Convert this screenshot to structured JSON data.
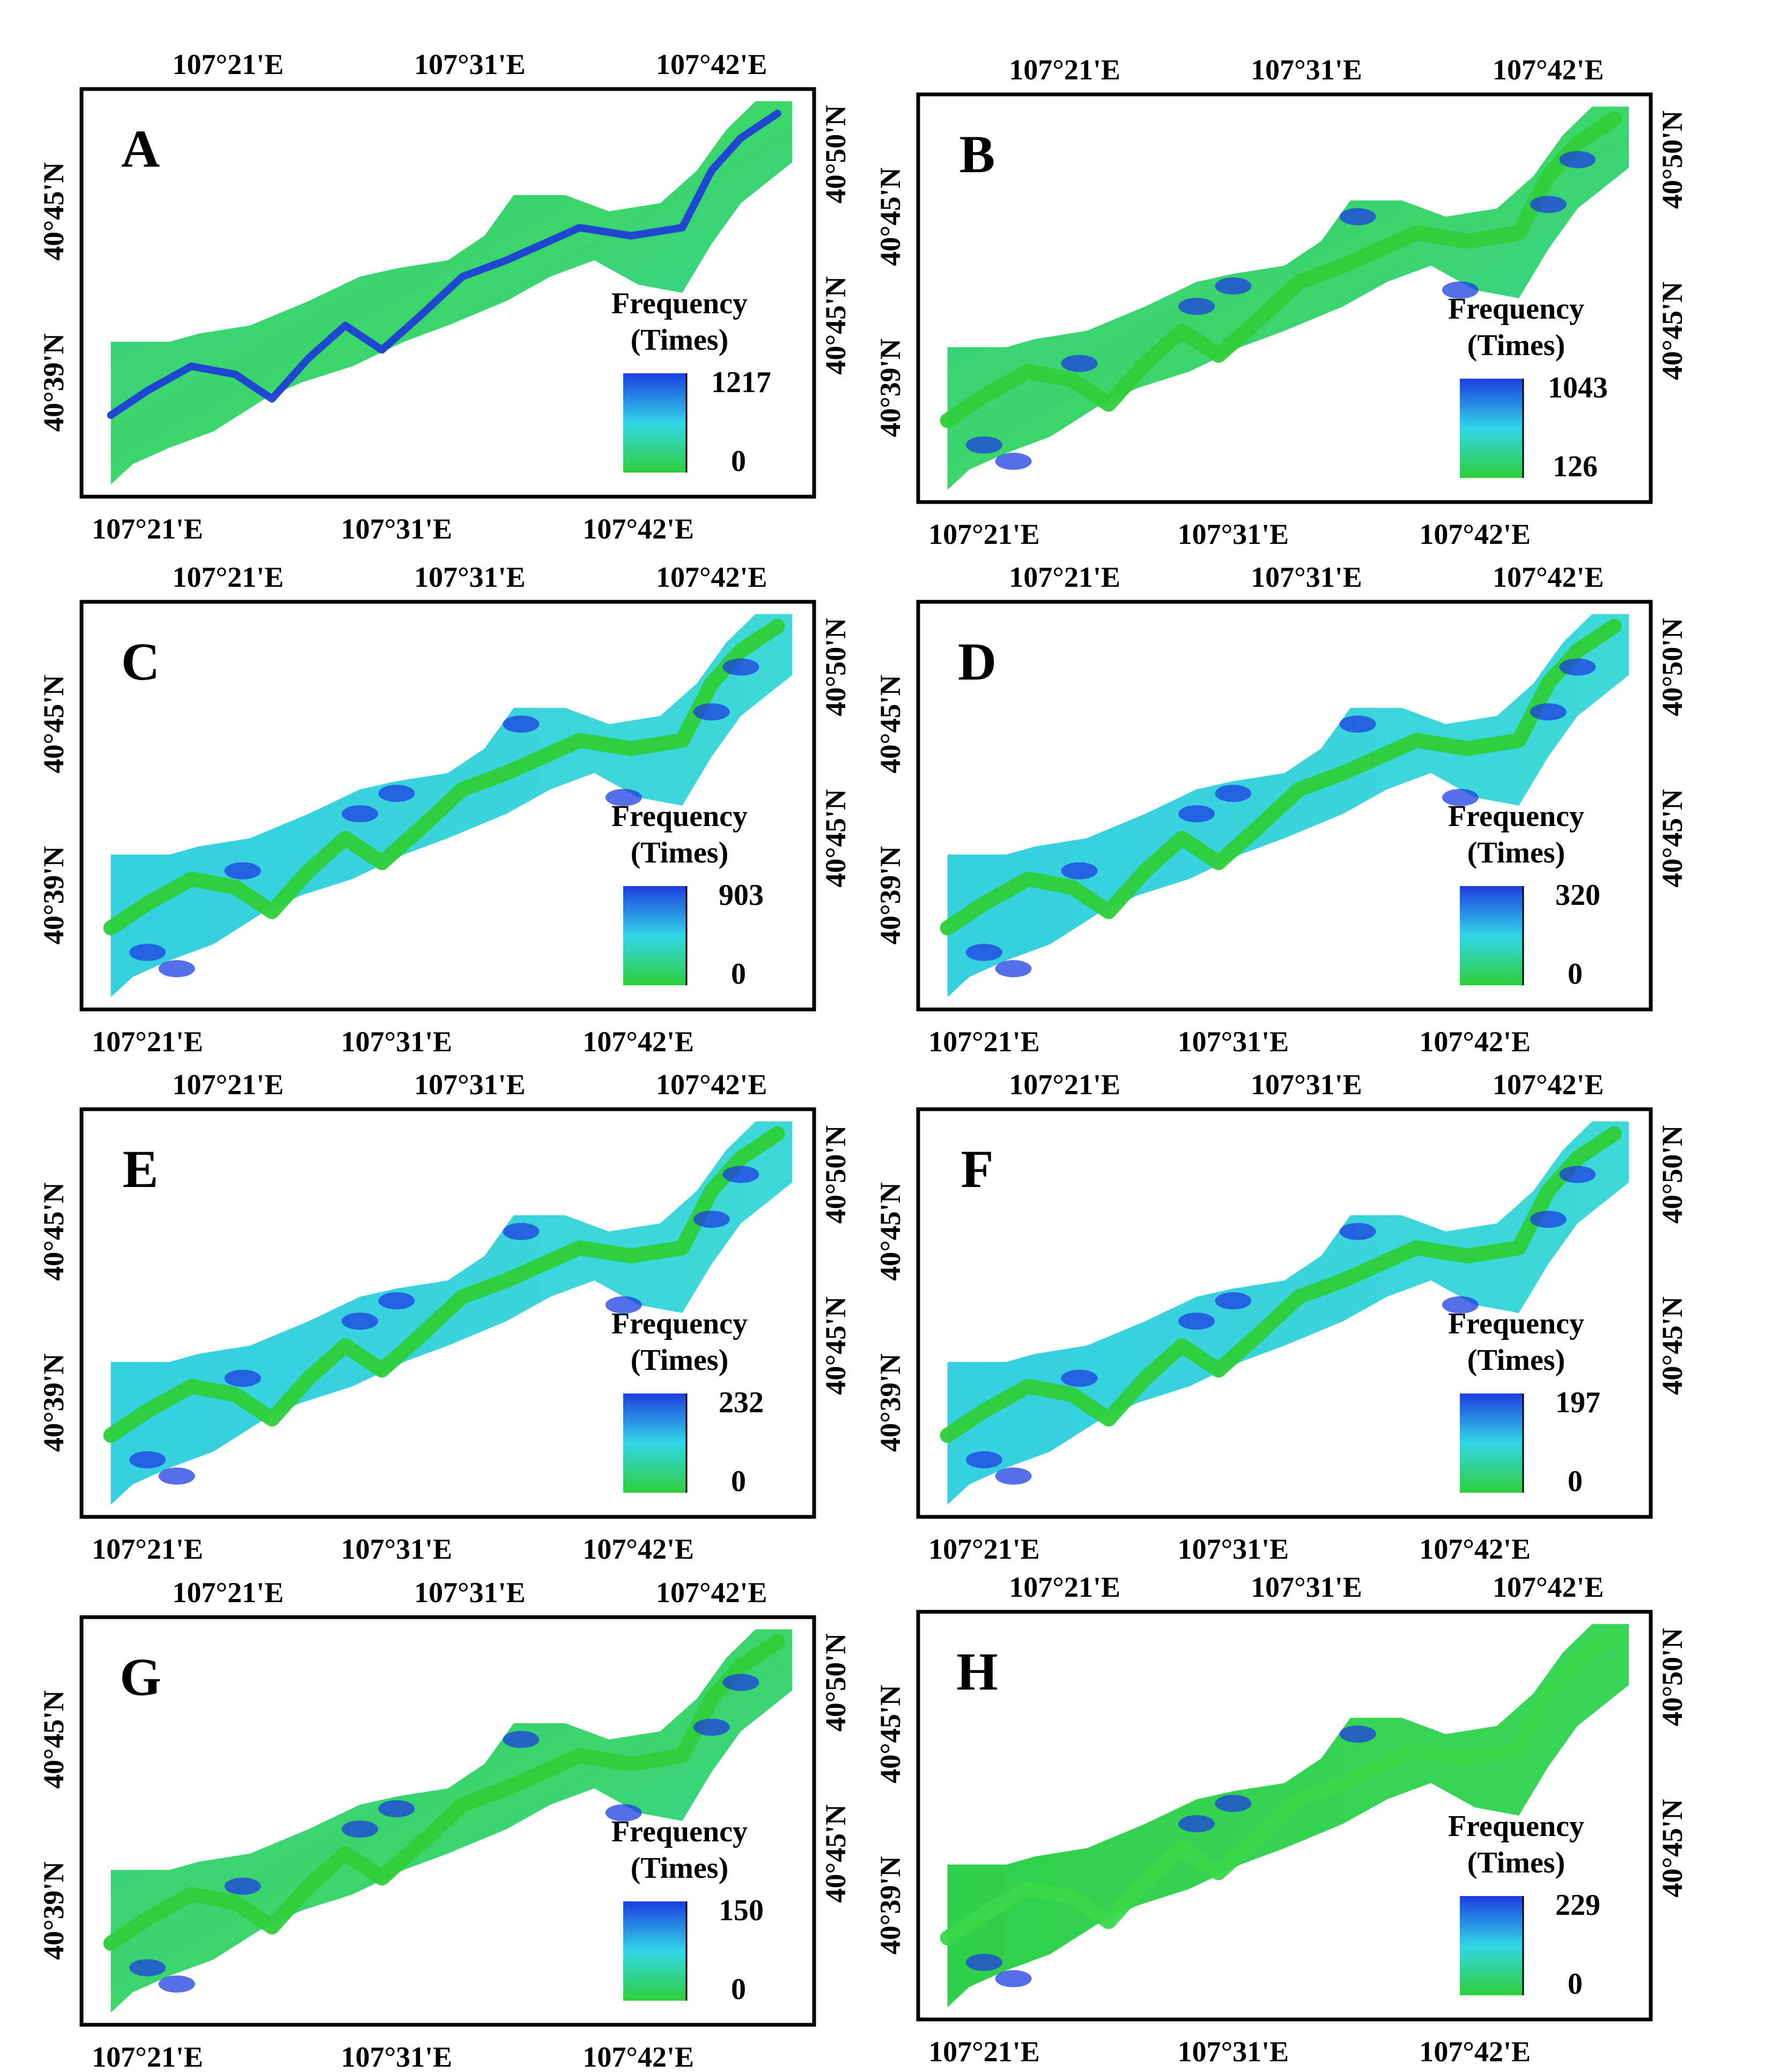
{
  "figure": {
    "axis_labels": {
      "top": [
        "107°21'E",
        "107°31'E",
        "107°42'E"
      ],
      "bottom": [
        "107°21'E",
        "107°31'E",
        "107°42'E"
      ],
      "left": [
        "40°45'N",
        "40°39'N"
      ],
      "right": [
        "40°50'N",
        "40°45'N"
      ]
    },
    "legend_title_line1": "Frequency",
    "legend_title_line2": "(Times)",
    "colors": {
      "river_channel": "#1f3fd6",
      "high": "#1e3ee0",
      "mid": "#33d6e8",
      "low": "#2ecf3a",
      "frame": "#000000"
    },
    "panels": [
      {
        "id": "A",
        "letter": "A",
        "legend_max": "1217",
        "legend_min": "0",
        "pattern": "channel"
      },
      {
        "id": "B",
        "letter": "B",
        "legend_max": "1043",
        "legend_min": "126",
        "pattern": "mixed-green"
      },
      {
        "id": "C",
        "letter": "C",
        "legend_max": "903",
        "legend_min": "0",
        "pattern": "cyan"
      },
      {
        "id": "D",
        "letter": "D",
        "legend_max": "320",
        "legend_min": "0",
        "pattern": "cyan"
      },
      {
        "id": "E",
        "letter": "E",
        "legend_max": "232",
        "legend_min": "0",
        "pattern": "cyan"
      },
      {
        "id": "F",
        "letter": "F",
        "legend_max": "197",
        "legend_min": "0",
        "pattern": "cyan"
      },
      {
        "id": "G",
        "letter": "G",
        "legend_max": "150",
        "legend_min": "0",
        "pattern": "mixed-green"
      },
      {
        "id": "H",
        "letter": "H",
        "legend_max": "229",
        "legend_min": "0",
        "pattern": "green"
      }
    ]
  }
}
